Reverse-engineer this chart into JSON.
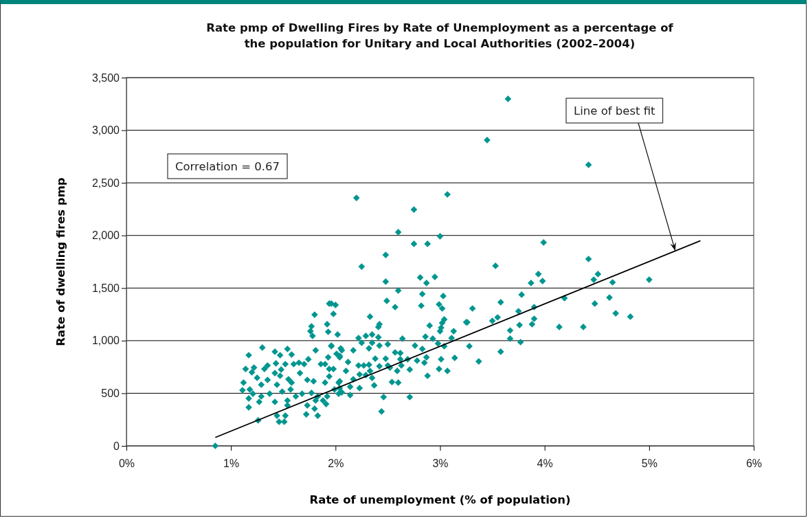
{
  "chart_data": {
    "type": "scatter",
    "title": "Rate pmp of Dwelling Fires by Rate of Unemployment as a percentage of the population for Unitary and Local Authorities (2002–2004)",
    "xlabel": "Rate of unemployment (% of population)",
    "ylabel": "Rate of dwelling fires pmp",
    "xlim": [
      0,
      6
    ],
    "ylim": [
      0,
      3500
    ],
    "xticks": [
      {
        "value": 0,
        "label": "0%"
      },
      {
        "value": 1,
        "label": "1%"
      },
      {
        "value": 2,
        "label": "2%"
      },
      {
        "value": 3,
        "label": "3%"
      },
      {
        "value": 4,
        "label": "4%"
      },
      {
        "value": 5,
        "label": "5%"
      },
      {
        "value": 6,
        "label": "6%"
      }
    ],
    "yticks": [
      0,
      500,
      {
        "value": 1000,
        "label": "1,000"
      },
      {
        "value": 1500,
        "label": "1,500"
      },
      {
        "value": 2000,
        "label": "2,000"
      },
      {
        "value": 2500,
        "label": "2,500"
      },
      {
        "value": 3000,
        "label": "3,000"
      },
      {
        "value": 3500,
        "label": "3,500"
      }
    ],
    "grid": "y",
    "marker": "diamond",
    "annotations": [
      "Correlation = 0.67",
      {
        "text": "Line of best fit",
        "x": 5.25,
        "y": 1853
      }
    ],
    "series": [
      {
        "type": "scatter",
        "color": "#009690",
        "x": [
          3.99,
          4.42,
          3.53,
          3.94,
          3.87,
          3.98,
          4.47,
          4.51,
          4.65,
          5.0,
          3.78,
          3.58,
          4.19,
          3.9,
          4.62,
          4.48,
          3.31,
          3.75,
          3.55,
          3.5,
          3.26,
          3.9,
          3.88,
          4.68,
          4.82,
          3.76,
          4.14,
          4.37,
          3.67,
          3.13,
          3.67,
          3.77,
          3.28,
          3.58,
          3.14,
          3.37,
          3.45,
          3.65,
          4.42,
          2.2,
          3.07,
          2.75,
          2.6,
          3.0,
          2.75,
          2.88,
          2.48,
          2.25,
          2.81,
          2.95,
          2.87,
          2.48,
          2.6,
          2.83,
          3.03,
          2.49,
          2.57,
          2.82,
          2.99,
          3.02,
          1.98,
          1.96,
          2.0,
          2.33,
          3.04,
          3.02,
          3.01,
          3.25,
          2.42,
          2.41,
          2.9,
          3.0,
          2.02,
          2.22,
          2.29,
          2.35,
          2.41,
          2.86,
          2.64,
          2.93,
          3.11,
          2.25,
          2.35,
          2.5,
          2.76,
          2.83,
          2.98,
          3.04,
          2.17,
          2.32,
          2.42,
          2.05,
          1.96,
          2.04,
          2.57,
          2.62,
          2.48,
          2.38,
          2.5,
          2.87,
          2.85,
          3.01,
          2.78,
          2.69,
          2.62,
          2.12,
          2.22,
          2.27,
          2.32,
          2.42,
          2.52,
          2.63,
          1.98,
          2.1,
          2.23,
          2.29,
          2.33,
          2.59,
          2.71,
          2.99,
          3.07,
          2.88,
          2.17,
          2.04,
          2.35,
          2.54,
          2.6,
          2.37,
          2.04,
          2.14,
          2.23,
          2.06,
          2.14,
          2.46,
          2.71,
          2.44,
          0.85,
          1.26,
          1.46,
          1.51,
          1.44,
          1.52,
          1.72,
          1.83,
          1.94,
          1.8,
          1.92,
          1.77,
          1.76,
          1.93,
          1.78,
          1.3,
          1.17,
          1.42,
          1.54,
          1.58,
          1.47,
          1.81,
          1.96,
          1.93,
          1.74,
          1.65,
          1.6,
          1.52,
          1.43,
          1.35,
          1.22,
          1.14,
          1.2,
          1.32,
          1.42,
          1.48,
          1.55,
          1.58,
          1.66,
          1.73,
          1.79,
          1.9,
          1.94,
          1.94,
          1.9,
          2.03,
          1.12,
          1.11,
          1.18,
          1.25,
          1.29,
          1.35,
          1.21,
          1.29,
          1.37,
          1.44,
          1.49,
          1.57,
          1.62,
          1.68,
          1.77,
          1.83,
          1.92,
          1.88,
          1.81,
          1.54,
          1.42,
          1.17,
          1.27,
          1.17,
          1.54,
          1.73,
          1.8,
          1.91,
          2.03,
          1.99,
          2.01,
          2.04,
          2.06,
          1.86,
          1.7,
          1.47
        ],
        "values": [
          1933,
          1776,
          1711,
          1633,
          1548,
          1567,
          1580,
          1633,
          1554,
          1580,
          1437,
          1365,
          1404,
          1319,
          1410,
          1352,
          1306,
          1280,
          1221,
          1188,
          1175,
          1208,
          1156,
          1260,
          1228,
          1149,
          1130,
          1130,
          1097,
          1090,
          1019,
          986,
          947,
          895,
          836,
          803,
          2906,
          3298,
          2671,
          2357,
          2390,
          2246,
          2031,
          1992,
          1920,
          1920,
          1815,
          1704,
          1600,
          1606,
          1548,
          1561,
          1476,
          1443,
          1424,
          1378,
          1319,
          1332,
          1345,
          1306,
          1254,
          1352,
          1339,
          1228,
          1202,
          1169,
          1123,
          1175,
          1156,
          1130,
          1143,
          1090,
          1058,
          1025,
          1045,
          1058,
          1032,
          1038,
          1019,
          1019,
          1025,
          980,
          980,
          966,
          953,
          921,
          973,
          947,
          908,
          927,
          953,
          927,
          947,
          855,
          888,
          882,
          829,
          829,
          764,
          842,
          790,
          823,
          810,
          823,
          823,
          797,
          764,
          764,
          771,
          757,
          744,
          764,
          731,
          712,
          679,
          673,
          712,
          712,
          725,
          731,
          712,
          666,
          633,
          614,
          646,
          607,
          601,
          575,
          549,
          562,
          549,
          509,
          483,
          464,
          464,
          327,
          0,
          242,
          229,
          229,
          287,
          287,
          300,
          287,
          1352,
          1247,
          1156,
          1136,
          1090,
          1084,
          1045,
          934,
          862,
          895,
          921,
          868,
          862,
          908,
          953,
          842,
          823,
          790,
          777,
          777,
          784,
          764,
          744,
          731,
          699,
          731,
          692,
          725,
          633,
          601,
          692,
          627,
          614,
          777,
          731,
          660,
          601,
          601,
          601,
          529,
          536,
          647,
          581,
          627,
          496,
          470,
          496,
          581,
          516,
          536,
          470,
          496,
          503,
          470,
          470,
          431,
          431,
          431,
          418,
          451,
          418,
          366,
          385,
          385,
          353,
          398,
          496,
          536,
          875,
          842,
          908,
          777,
          777,
          666
        ]
      },
      {
        "type": "line",
        "color": "#000000",
        "marker": "none",
        "x": [
          0.85,
          5.49
        ],
        "values": [
          80,
          1950
        ]
      }
    ]
  }
}
